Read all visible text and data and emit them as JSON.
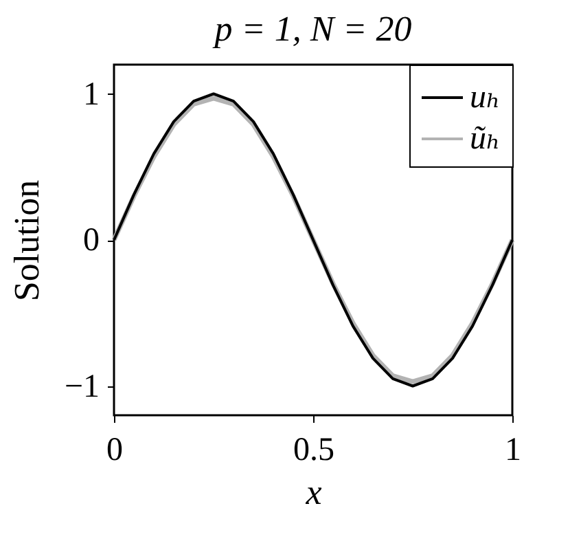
{
  "chart_data": {
    "type": "line",
    "title": "p = 1, N = 20",
    "xlabel": "x",
    "ylabel": "Solution",
    "x": [
      0,
      0.05,
      0.1,
      0.15,
      0.2,
      0.25,
      0.3,
      0.35,
      0.4,
      0.45,
      0.5,
      0.55,
      0.6,
      0.65,
      0.7,
      0.75,
      0.8,
      0.85,
      0.9,
      0.95,
      1
    ],
    "series": [
      {
        "name": "uₕ",
        "color": "#000000",
        "values": [
          0,
          0.31,
          0.59,
          0.81,
          0.95,
          1,
          0.95,
          0.81,
          0.59,
          0.31,
          0,
          -0.31,
          -0.59,
          -0.81,
          -0.95,
          -1,
          -0.95,
          -0.81,
          -0.59,
          -0.31,
          0
        ]
      },
      {
        "name": "ũₕ",
        "color": "#b3b3b3",
        "values": [
          0,
          0.3,
          0.57,
          0.79,
          0.93,
          0.97,
          0.93,
          0.79,
          0.57,
          0.3,
          0,
          -0.3,
          -0.57,
          -0.79,
          -0.93,
          -0.97,
          -0.93,
          -0.79,
          -0.57,
          -0.3,
          0
        ]
      }
    ],
    "xlim": [
      0,
      1
    ],
    "xticks": [
      0,
      0.5,
      1
    ],
    "ylim": [
      -1.2,
      1.2
    ],
    "yticks": [
      -1,
      0,
      1
    ],
    "grid": false,
    "legend": "top right",
    "marker": "none",
    "line_style": "solid"
  }
}
